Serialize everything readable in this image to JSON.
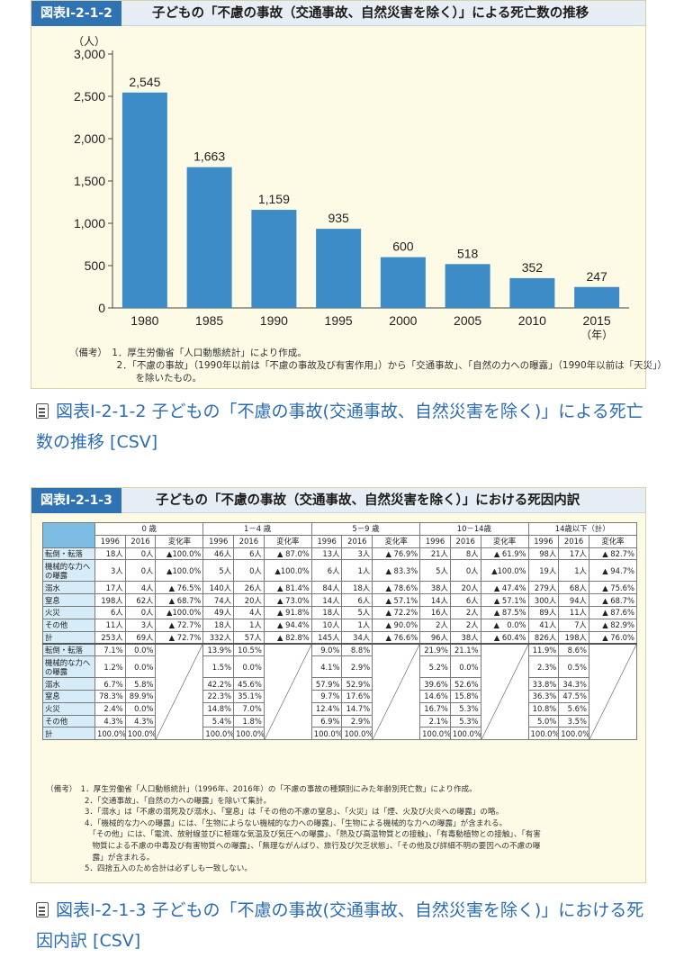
{
  "figure1": {
    "badge": "図表Ⅰ-2-1-2",
    "title": "子どもの「不慮の事故（交通事故、自然災害を除く）」による死亡数の推移",
    "notes": [
      "（備考）　1．厚生労働省「人口動態統計」により作成。",
      "　　　　　2．「不慮の事故」（1990年以前は「不慮の事故及び有害作用」）から「交通事故」、「自然の力への曝露」（1990年以前は「天災」）",
      "　　　　　　　を除いたもの。"
    ]
  },
  "chart_data": {
    "type": "bar",
    "categories": [
      "1980",
      "1985",
      "1990",
      "1995",
      "2000",
      "2005",
      "2010",
      "2015"
    ],
    "values": [
      2545,
      1663,
      1159,
      935,
      600,
      518,
      352,
      247
    ],
    "data_labels": [
      "2,545",
      "1,663",
      "1,159",
      "935",
      "600",
      "518",
      "352",
      "247"
    ],
    "y_ticks": [
      "0",
      "500",
      "1,000",
      "1,500",
      "2,000",
      "2,500",
      "3,000"
    ],
    "y_unit": "（人）",
    "x_unit": "（年）",
    "ylim": [
      0,
      3000
    ],
    "bar_color": "#3d8cc8",
    "grid": false
  },
  "link1": "図表Ⅰ-2-1-2 子どもの「不慮の事故(交通事故、自然災害を除く)」による死亡数の推移 [CSV]",
  "figure2": {
    "badge": "図表Ⅰ-2-1-3",
    "title": "子どもの「不慮の事故（交通事故、自然災害を除く）」における死因内訳",
    "groups": [
      "0 歳",
      "1－4 歳",
      "5－9 歳",
      "10－14歳",
      "14歳以下（計）"
    ],
    "subheaders": [
      "1996",
      "2016",
      "変化率"
    ],
    "count_rows": [
      {
        "label": "転倒・転落",
        "cells": [
          "18人",
          "0人",
          "▲100.0%",
          "46人",
          "6人",
          "▲ 87.0%",
          "13人",
          "3人",
          "▲ 76.9%",
          "21人",
          "8人",
          "▲ 61.9%",
          "98人",
          "17人",
          "▲ 82.7%"
        ]
      },
      {
        "label": "機械的な力への曝露",
        "cells": [
          "3人",
          "0人",
          "▲100.0%",
          "5人",
          "0人",
          "▲100.0%",
          "6人",
          "1人",
          "▲ 83.3%",
          "5人",
          "0人",
          "▲100.0%",
          "19人",
          "1人",
          "▲ 94.7%"
        ]
      },
      {
        "label": "溺水",
        "cells": [
          "17人",
          "4人",
          "▲ 76.5%",
          "140人",
          "26人",
          "▲ 81.4%",
          "84人",
          "18人",
          "▲ 78.6%",
          "38人",
          "20人",
          "▲ 47.4%",
          "279人",
          "68人",
          "▲ 75.6%"
        ]
      },
      {
        "label": "窒息",
        "cells": [
          "198人",
          "62人",
          "▲ 68.7%",
          "74人",
          "20人",
          "▲ 73.0%",
          "14人",
          "6人",
          "▲ 57.1%",
          "14人",
          "6人",
          "▲ 57.1%",
          "300人",
          "94人",
          "▲ 68.7%"
        ]
      },
      {
        "label": "火災",
        "cells": [
          "6人",
          "0人",
          "▲100.0%",
          "49人",
          "4人",
          "▲ 91.8%",
          "18人",
          "5人",
          "▲ 72.2%",
          "16人",
          "2人",
          "▲ 87.5%",
          "89人",
          "11人",
          "▲ 87.6%"
        ]
      },
      {
        "label": "その他",
        "cells": [
          "11人",
          "3人",
          "▲ 72.7%",
          "18人",
          "1人",
          "▲ 94.4%",
          "10人",
          "1人",
          "▲ 90.0%",
          "2人",
          "2人",
          "▲　0.0%",
          "41人",
          "7人",
          "▲ 82.9%"
        ]
      },
      {
        "label": "計",
        "cells": [
          "253人",
          "69人",
          "▲ 72.7%",
          "332人",
          "57人",
          "▲ 82.8%",
          "145人",
          "34人",
          "▲ 76.6%",
          "96人",
          "38人",
          "▲ 60.4%",
          "826人",
          "198人",
          "▲ 76.0%"
        ]
      }
    ],
    "pct_rows": [
      {
        "label": "転倒・転落",
        "cells": [
          "7.1%",
          "0.0%",
          "13.9%",
          "10.5%",
          "9.0%",
          "8.8%",
          "21.9%",
          "21.1%",
          "11.9%",
          "8.6%"
        ]
      },
      {
        "label": "機械的な力への曝露",
        "cells": [
          "1.2%",
          "0.0%",
          "1.5%",
          "0.0%",
          "4.1%",
          "2.9%",
          "5.2%",
          "0.0%",
          "2.3%",
          "0.5%"
        ]
      },
      {
        "label": "溺水",
        "cells": [
          "6.7%",
          "5.8%",
          "42.2%",
          "45.6%",
          "57.9%",
          "52.9%",
          "39.6%",
          "52.6%",
          "33.8%",
          "34.3%"
        ]
      },
      {
        "label": "窒息",
        "cells": [
          "78.3%",
          "89.9%",
          "22.3%",
          "35.1%",
          "9.7%",
          "17.6%",
          "14.6%",
          "15.8%",
          "36.3%",
          "47.5%"
        ]
      },
      {
        "label": "火災",
        "cells": [
          "2.4%",
          "0.0%",
          "14.8%",
          "7.0%",
          "12.4%",
          "14.7%",
          "16.7%",
          "5.3%",
          "10.8%",
          "5.6%"
        ]
      },
      {
        "label": "その他",
        "cells": [
          "4.3%",
          "4.3%",
          "5.4%",
          "1.8%",
          "6.9%",
          "2.9%",
          "2.1%",
          "5.3%",
          "5.0%",
          "3.5%"
        ]
      },
      {
        "label": "計",
        "cells": [
          "100.0%",
          "100.0%",
          "100.0%",
          "100.0%",
          "100.0%",
          "100.0%",
          "100.0%",
          "100.0%",
          "100.0%",
          "100.0%"
        ]
      }
    ],
    "notes": [
      "（備考）　1．厚生労働省「人口動態統計」（1996年、2016年）の「不慮の事故の種類別にみた年齢別死亡数」により作成。",
      "　　　　　2．「交通事故」、「自然の力への曝露」を除いて集計。",
      "　　　　　3．「溺水」は「不慮の溺死及び溺水」、「窒息」は「その他の不慮の窒息」、「火災」は「煙、火及び火炎への曝露」の略。",
      "　　　　　4．「機械的な力への曝露」には、「生物によらない機械的な力への曝露」、「生物による機械的な力への曝露」が含まれる。",
      "　　　　　　「その他」には、「電流、放射線並びに極端な気温及び気圧への曝露」、「熱及び高温物質との接触」、「有毒動植物との接触」、「有害",
      "　　　　　　物質による不慮の中毒及び有害物質への曝露」、「無理ながんばり、旅行及び欠乏状態」、「その他及び詳細不明の要因への不慮の曝",
      "　　　　　　露」が含まれる。",
      "　　　　　5．四捨五入のため合計は必ずしも一致しない。"
    ]
  },
  "link2": "図表Ⅰ-2-1-3 子どもの「不慮の事故(交通事故、自然災害を除く)」における死因内訳 [CSV]"
}
